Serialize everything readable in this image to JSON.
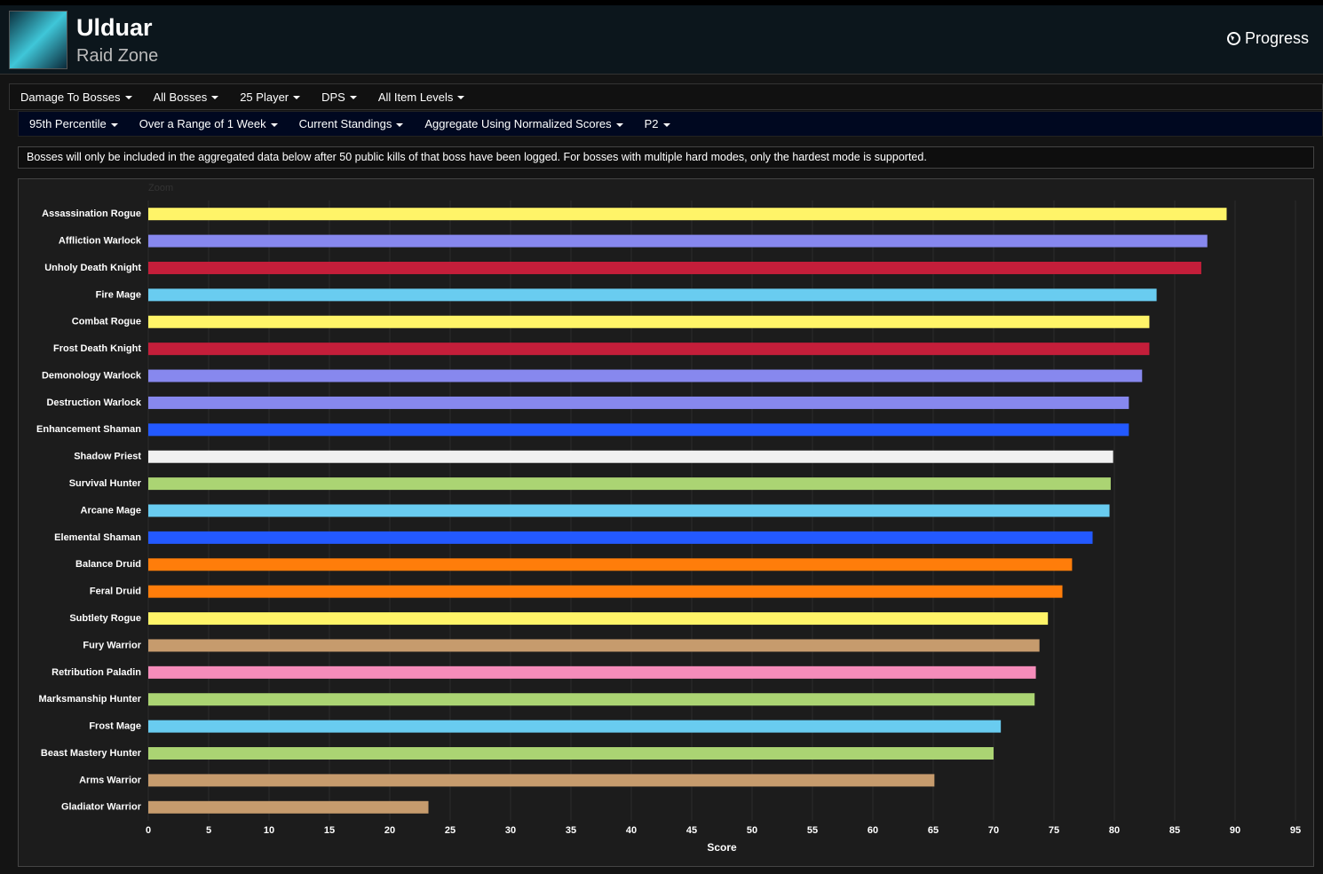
{
  "header": {
    "title": "Ulduar",
    "subtitle": "Raid Zone",
    "link": "Progress"
  },
  "filters": {
    "row1": [
      "Damage To Bosses",
      "All Bosses",
      "25 Player",
      "DPS",
      "All Item Levels"
    ],
    "row2": [
      "95th Percentile",
      "Over a Range of 1 Week",
      "Current Standings",
      "Aggregate Using Normalized Scores",
      "P2"
    ]
  },
  "notice": "Bosses will only be included in the aggregated data below after 50 public kills of that boss have been logged. For bosses with multiple hard modes, only the hardest mode is supported.",
  "chart_data": {
    "type": "hbar",
    "zoom_label": "Zoom",
    "xlabel": "Score",
    "categories": [
      "Assassination Rogue",
      "Affliction Warlock",
      "Unholy Death Knight",
      "Fire Mage",
      "Combat Rogue",
      "Frost Death Knight",
      "Demonology Warlock",
      "Destruction Warlock",
      "Enhancement Shaman",
      "Shadow Priest",
      "Survival Hunter",
      "Arcane Mage",
      "Elemental Shaman",
      "Balance Druid",
      "Feral Druid",
      "Subtlety Rogue",
      "Fury Warrior",
      "Retribution Paladin",
      "Marksmanship Hunter",
      "Frost Mage",
      "Beast Mastery Hunter",
      "Arms Warrior",
      "Gladiator Warrior"
    ],
    "values": [
      89.3,
      87.7,
      87.2,
      83.5,
      82.9,
      82.9,
      82.3,
      81.2,
      81.2,
      79.9,
      79.7,
      79.6,
      78.2,
      76.5,
      75.7,
      74.5,
      73.8,
      73.5,
      73.4,
      70.6,
      70.0,
      65.1,
      23.2
    ],
    "colors": [
      "#fff468",
      "#8788ee",
      "#c41e3a",
      "#69ccf0",
      "#fff468",
      "#c41e3a",
      "#8788ee",
      "#8788ee",
      "#2359ff",
      "#f0f0f0",
      "#abd473",
      "#69ccf0",
      "#2359ff",
      "#ff7d0a",
      "#ff7d0a",
      "#fff468",
      "#c69b6d",
      "#f58cba",
      "#abd473",
      "#69ccf0",
      "#abd473",
      "#c69b6d",
      "#c69b6d"
    ],
    "xlim": [
      0,
      95
    ],
    "xticks": [
      0,
      5,
      10,
      15,
      20,
      25,
      30,
      35,
      40,
      45,
      50,
      55,
      60,
      65,
      70,
      75,
      80,
      85,
      90,
      95
    ],
    "grid": true
  }
}
